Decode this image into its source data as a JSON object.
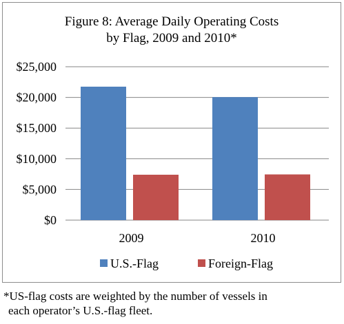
{
  "chart_data": {
    "type": "bar",
    "title_line1": "Figure 8: Average Daily Operating Costs",
    "title_line2": "by Flag, 2009 and 2010*",
    "categories": [
      "2009",
      "2010"
    ],
    "series": [
      {
        "name": "U.S.-Flag",
        "values": [
          21750,
          20050
        ]
      },
      {
        "name": "Foreign-Flag",
        "values": [
          7400,
          7450
        ]
      }
    ],
    "ylim": [
      0,
      25000
    ],
    "yticks": [
      0,
      5000,
      10000,
      15000,
      20000,
      25000
    ],
    "ytick_labels": [
      "$0",
      "$5,000",
      "$10,000",
      "$15,000",
      "$20,000",
      "$25,000"
    ],
    "grid": true,
    "legend_position": "bottom"
  },
  "colors": {
    "us_flag": "#4f81bd",
    "foreign_flag": "#c0504d",
    "grid": "#868686"
  },
  "footnote": {
    "line1": "*US-flag costs are weighted by the number of vessels in",
    "line2": "each operator’s U.S.-flag fleet."
  }
}
